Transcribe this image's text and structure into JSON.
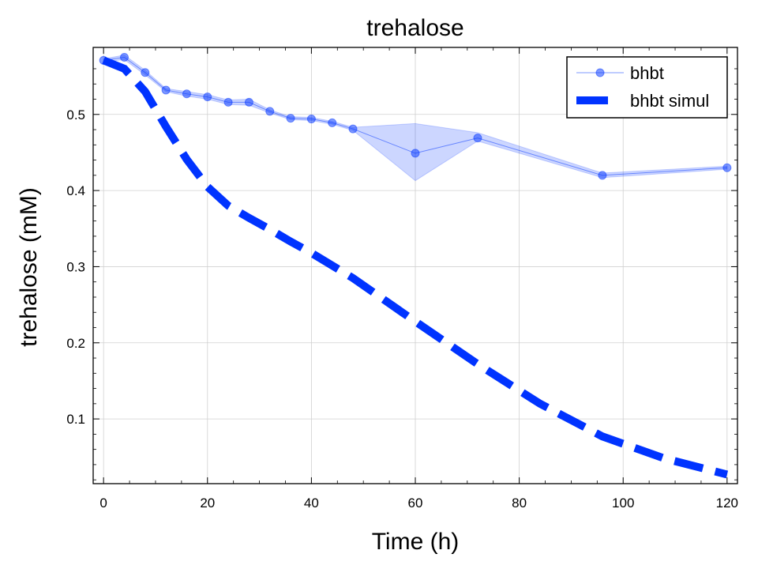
{
  "chart_data": {
    "type": "line",
    "title": "trehalose",
    "xlabel": "Time (h)",
    "ylabel": "trehalose (mM)",
    "xlim": [
      -2,
      122
    ],
    "ylim": [
      0.015,
      0.588
    ],
    "xticks": [
      0,
      20,
      40,
      60,
      80,
      100,
      120
    ],
    "yticks": [
      0.1,
      0.2,
      0.3,
      0.4,
      0.5
    ],
    "grid": true,
    "legend_position": "top-right",
    "series": [
      {
        "name": "bhbt",
        "style": "line-with-markers-and-band",
        "color": "#0033ff",
        "x": [
          0,
          4,
          8,
          12,
          16,
          20,
          24,
          28,
          32,
          36,
          40,
          44,
          48,
          60,
          72,
          96,
          120
        ],
        "y": [
          0.571,
          0.575,
          0.555,
          0.532,
          0.527,
          0.523,
          0.516,
          0.516,
          0.504,
          0.495,
          0.494,
          0.489,
          0.481,
          0.449,
          0.469,
          0.42,
          0.43
        ],
        "y_lower": [
          0.569,
          0.572,
          0.552,
          0.53,
          0.524,
          0.52,
          0.513,
          0.512,
          0.502,
          0.493,
          0.492,
          0.487,
          0.479,
          0.413,
          0.465,
          0.417,
          0.428
        ],
        "y_upper": [
          0.573,
          0.578,
          0.558,
          0.534,
          0.53,
          0.526,
          0.519,
          0.52,
          0.506,
          0.497,
          0.496,
          0.491,
          0.483,
          0.488,
          0.476,
          0.423,
          0.432
        ]
      },
      {
        "name": "bhbt simul",
        "style": "dashed-thick",
        "color": "#0033ff",
        "x": [
          0,
          4,
          8,
          12,
          16,
          20,
          24,
          28,
          32,
          36,
          40,
          48,
          60,
          72,
          84,
          96,
          108,
          120
        ],
        "y": [
          0.571,
          0.56,
          0.53,
          0.484,
          0.441,
          0.405,
          0.38,
          0.364,
          0.349,
          0.333,
          0.318,
          0.285,
          0.228,
          0.172,
          0.12,
          0.077,
          0.048,
          0.027
        ]
      }
    ]
  }
}
